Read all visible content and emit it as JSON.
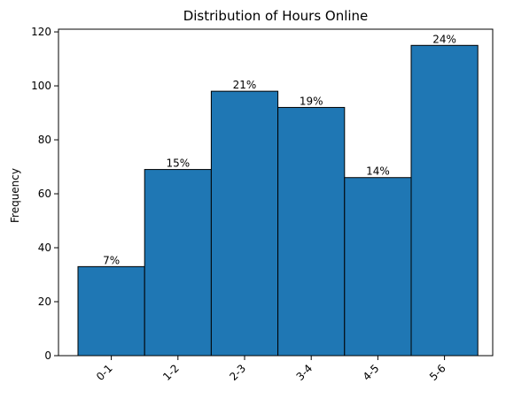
{
  "chart_data": {
    "type": "bar",
    "title": "Distribution of Hours Online",
    "xlabel": "",
    "ylabel": "Frequency",
    "categories": [
      "0-1",
      "1-2",
      "2-3",
      "3-4",
      "4-5",
      "5-6"
    ],
    "values": [
      33,
      69,
      98,
      92,
      66,
      115
    ],
    "data_labels": [
      "7%",
      "15%",
      "21%",
      "19%",
      "14%",
      "24%"
    ],
    "ylim": [
      0,
      121
    ],
    "yticks": [
      0,
      20,
      40,
      60,
      80,
      100,
      120
    ],
    "grid": false,
    "legend": "none",
    "colors": {
      "bar_fill": "#1f77b4",
      "bar_edge": "#000000",
      "axis": "#000000"
    }
  }
}
